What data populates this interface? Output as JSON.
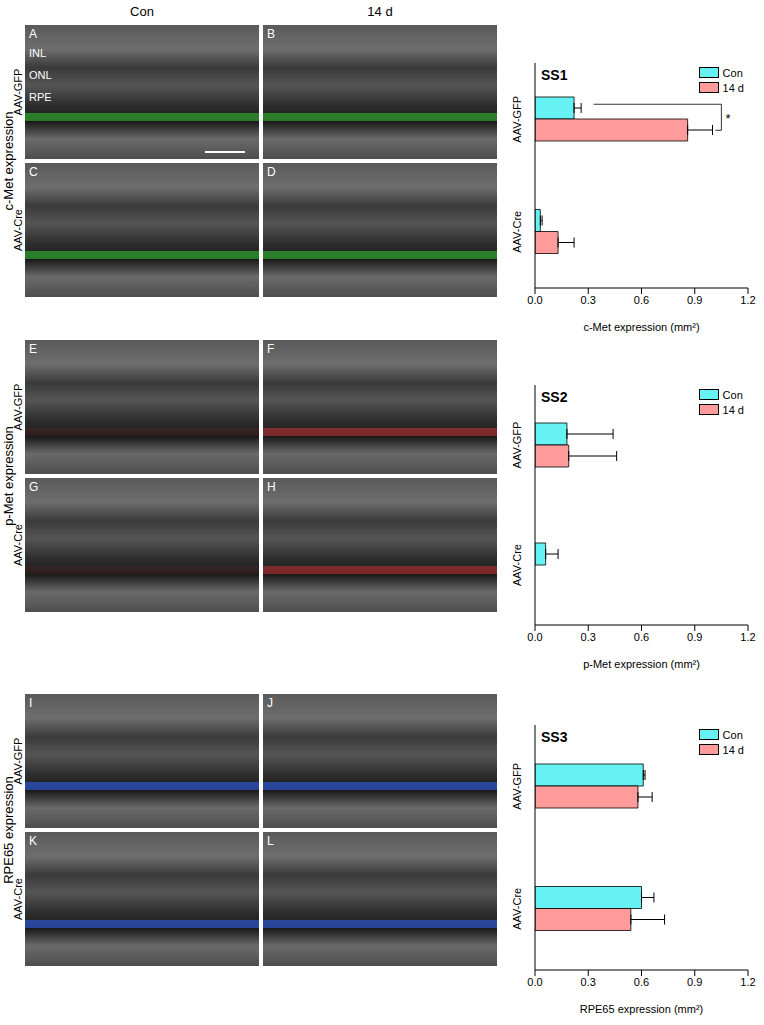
{
  "figure": {
    "columns": [
      "Con",
      "14 d"
    ],
    "layers": [
      "INL",
      "ONL",
      "RPE"
    ],
    "rows": [
      {
        "label": "c-Met expression",
        "groups": [
          {
            "label": "AAV-GFP",
            "panels": [
              "A",
              "B"
            ]
          },
          {
            "label": "AAV-Cre",
            "panels": [
              "C",
              "D"
            ]
          }
        ]
      },
      {
        "label": "p-Met expression",
        "groups": [
          {
            "label": "AAV-GFP",
            "panels": [
              "E",
              "F"
            ]
          },
          {
            "label": "AAV-Cre",
            "panels": [
              "G",
              "H"
            ]
          }
        ]
      },
      {
        "label": "RPE65 expression",
        "groups": [
          {
            "label": "AAV-GFP",
            "panels": [
              "I",
              "J"
            ]
          },
          {
            "label": "AAV-Cre",
            "panels": [
              "K",
              "L"
            ]
          }
        ]
      }
    ]
  },
  "chart_data": [
    {
      "type": "bar",
      "orientation": "horizontal",
      "title": "SS1",
      "x_label": "c-Met expression (mm²)",
      "legend": "upper right",
      "categories": [
        "AAV-GFP",
        "AAV-Cre"
      ],
      "series": [
        {
          "name": "Con",
          "color": "#66f2f2",
          "values": [
            0.22,
            0.03
          ],
          "errors": [
            0.04,
            0.01
          ]
        },
        {
          "name": "14 d",
          "color": "#ff9b9b",
          "values": [
            0.86,
            0.13
          ],
          "errors": [
            0.14,
            0.09
          ]
        }
      ],
      "xlim": [
        0,
        1.2
      ],
      "xticks": [
        {
          "value": 0,
          "label": "0.0"
        },
        0.3,
        0.6,
        0.9,
        1.2
      ],
      "annotations": [
        {
          "text": "*"
        }
      ]
    },
    {
      "type": "bar",
      "orientation": "horizontal",
      "title": "SS2",
      "x_label": "p-Met expression (mm²)",
      "legend": "upper right",
      "categories": [
        "AAV-GFP",
        "AAV-Cre"
      ],
      "series": [
        {
          "name": "Con",
          "color": "#66f2f2",
          "values": [
            0.18,
            0.06
          ],
          "errors": [
            0.26,
            0.07
          ]
        },
        {
          "name": "14 d",
          "color": "#ff9b9b",
          "values": [
            0.19,
            0
          ],
          "errors": [
            0.27,
            0
          ]
        }
      ],
      "xlim": [
        0,
        1.2
      ],
      "xticks": [
        {
          "value": 0,
          "label": "0.0"
        },
        0.3,
        0.6,
        0.9,
        1.2
      ]
    },
    {
      "type": "bar",
      "orientation": "horizontal",
      "title": "SS3",
      "x_label": "RPE65 expression (mm²)",
      "legend": "upper right",
      "categories": [
        "AAV-GFP",
        "AAV-Cre"
      ],
      "series": [
        {
          "name": "Con",
          "color": "#66f2f2",
          "values": [
            0.61,
            0.6
          ],
          "errors": [
            0.01,
            0.07
          ]
        },
        {
          "name": "14 d",
          "color": "#ff9b9b",
          "values": [
            0.58,
            0.54
          ],
          "errors": [
            0.08,
            0.19
          ]
        }
      ],
      "xlim": [
        0,
        1.2
      ],
      "xticks": [
        {
          "value": 0,
          "label": "0.0"
        },
        0.3,
        0.6,
        0.9,
        1.2
      ]
    }
  ]
}
